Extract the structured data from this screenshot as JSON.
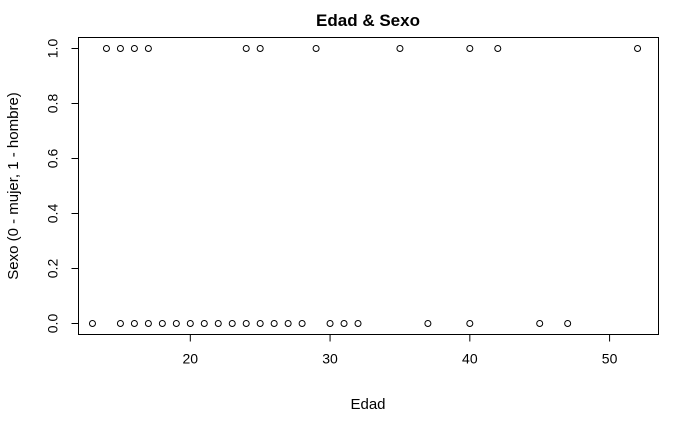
{
  "chart_data": {
    "type": "scatter",
    "title": "Edad & Sexo",
    "xlabel": "Edad",
    "ylabel": "Sexo (0 - mujer, 1 - hombre)",
    "xlim": [
      12,
      53.5
    ],
    "ylim": [
      -0.04,
      1.04
    ],
    "xticks": [
      20,
      30,
      40,
      50
    ],
    "yticks": [
      0.0,
      0.2,
      0.4,
      0.6,
      0.8,
      1.0
    ],
    "xtick_labels": [
      "20",
      "30",
      "40",
      "50"
    ],
    "ytick_labels": [
      "0.0",
      "0.2",
      "0.4",
      "0.6",
      "0.8",
      "1.0"
    ],
    "marker": "open-circle",
    "grid": false,
    "points": [
      {
        "x": 13,
        "y": 0
      },
      {
        "x": 15,
        "y": 0
      },
      {
        "x": 16,
        "y": 0
      },
      {
        "x": 17,
        "y": 0
      },
      {
        "x": 18,
        "y": 0
      },
      {
        "x": 19,
        "y": 0
      },
      {
        "x": 20,
        "y": 0
      },
      {
        "x": 21,
        "y": 0
      },
      {
        "x": 22,
        "y": 0
      },
      {
        "x": 23,
        "y": 0
      },
      {
        "x": 24,
        "y": 0
      },
      {
        "x": 25,
        "y": 0
      },
      {
        "x": 26,
        "y": 0
      },
      {
        "x": 27,
        "y": 0
      },
      {
        "x": 28,
        "y": 0
      },
      {
        "x": 30,
        "y": 0
      },
      {
        "x": 31,
        "y": 0
      },
      {
        "x": 32,
        "y": 0
      },
      {
        "x": 37,
        "y": 0
      },
      {
        "x": 40,
        "y": 0
      },
      {
        "x": 45,
        "y": 0
      },
      {
        "x": 47,
        "y": 0
      },
      {
        "x": 14,
        "y": 1
      },
      {
        "x": 15,
        "y": 1
      },
      {
        "x": 16,
        "y": 1
      },
      {
        "x": 17,
        "y": 1
      },
      {
        "x": 24,
        "y": 1
      },
      {
        "x": 25,
        "y": 1
      },
      {
        "x": 29,
        "y": 1
      },
      {
        "x": 35,
        "y": 1
      },
      {
        "x": 40,
        "y": 1
      },
      {
        "x": 42,
        "y": 1
      },
      {
        "x": 52,
        "y": 1
      }
    ]
  }
}
